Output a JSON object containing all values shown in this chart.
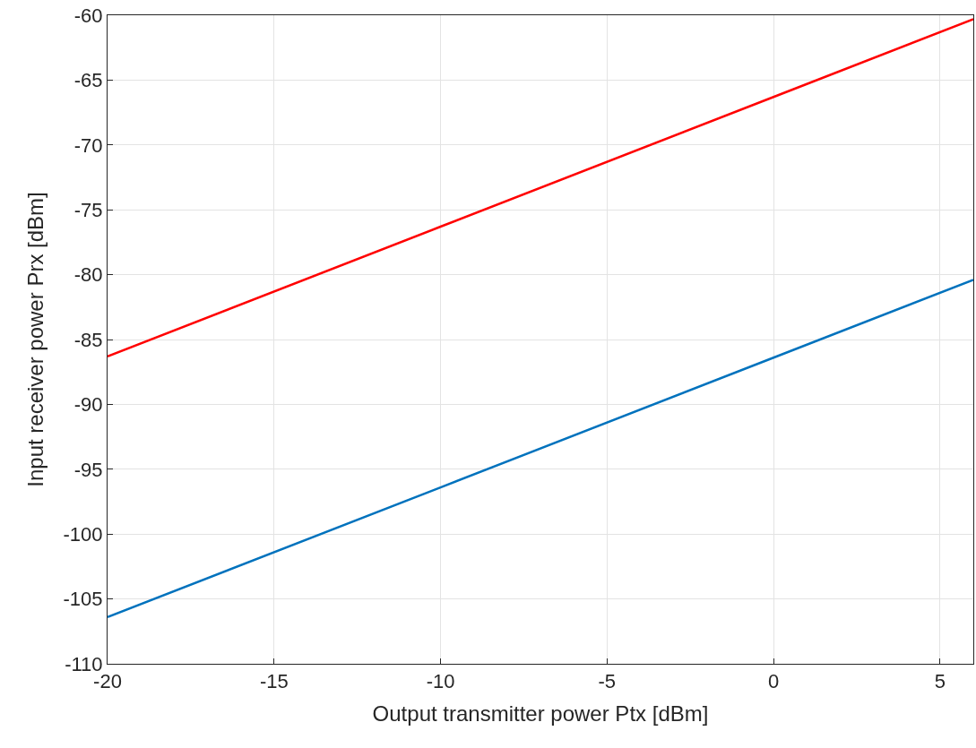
{
  "chart_data": {
    "type": "line",
    "xlabel": "Output transmitter power Ptx [dBm]",
    "ylabel": "Input receiver power Prx [dBm]",
    "x": [
      -20,
      -10,
      0,
      6
    ],
    "series": [
      {
        "color": "#0072bd",
        "values": [
          -106.4,
          -96.4,
          -86.4,
          -80.4
        ]
      },
      {
        "color": "#ff0000",
        "values": [
          -86.3,
          -76.3,
          -66.3,
          -60.3
        ]
      }
    ],
    "xlim": [
      -20,
      6
    ],
    "xticks": [
      -20,
      -15,
      -10,
      -5,
      0,
      5
    ],
    "ylim": [
      -110,
      -60
    ],
    "yticks": [
      -110,
      -105,
      -100,
      -95,
      -90,
      -85,
      -80,
      -75,
      -70,
      -65,
      -60
    ],
    "grid": true,
    "line_style": "solid",
    "marker": "none"
  }
}
